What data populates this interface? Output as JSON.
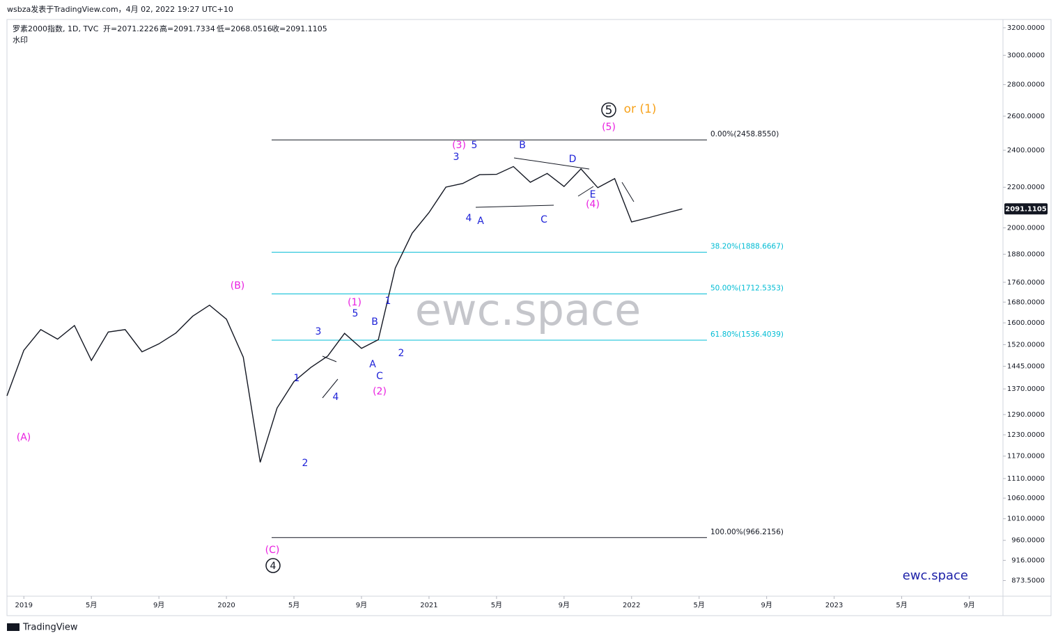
{
  "header": {
    "author": "wsbza发表于TradingView.com，4月 02, 2022 19:27 UTC+10",
    "symbol": "罗素2000指数, 1D, TVC",
    "open": "开=2071.2226",
    "high": "高=2091.7334",
    "low": "低=2068.0516",
    "close": "收=2091.1105",
    "watermark_label": "水印"
  },
  "chart_data": {
    "type": "line",
    "color": "#131722",
    "log_scale": true,
    "x": [
      "2018-12",
      "2019-01",
      "2019-02",
      "2019-03",
      "2019-04",
      "2019-05",
      "2019-06",
      "2019-07",
      "2019-08",
      "2019-09",
      "2019-10",
      "2019-11",
      "2019-12",
      "2020-01",
      "2020-02",
      "2020-03",
      "2020-04",
      "2020-05",
      "2020-06",
      "2020-07",
      "2020-08",
      "2020-09",
      "2020-10",
      "2020-11",
      "2020-12",
      "2021-01",
      "2021-02",
      "2021-03",
      "2021-04",
      "2021-05",
      "2021-06",
      "2021-07",
      "2021-08",
      "2021-09",
      "2021-10",
      "2021-11",
      "2021-12",
      "2022-01",
      "2022-02",
      "2022-03",
      "2022-04"
    ],
    "values": [
      1348,
      1500,
      1575,
      1540,
      1590,
      1465,
      1566,
      1575,
      1495,
      1523,
      1562,
      1625,
      1668,
      1614,
      1476,
      1153,
      1310,
      1394,
      1441,
      1480,
      1561,
      1507,
      1538,
      1820,
      1975,
      2073,
      2201,
      2220,
      2266,
      2268,
      2310,
      2226,
      2273,
      2204,
      2297,
      2198,
      2245,
      2028,
      2048,
      2070,
      2091
    ],
    "xlim": [
      "2018-12",
      "2023-11"
    ],
    "xticks": [
      {
        "value": "2019-01",
        "label": "2019"
      },
      {
        "value": "2019-05",
        "label": "5月"
      },
      {
        "value": "2019-09",
        "label": "9月"
      },
      {
        "value": "2020-01",
        "label": "2020"
      },
      {
        "value": "2020-05",
        "label": "5月"
      },
      {
        "value": "2020-09",
        "label": "9月"
      },
      {
        "value": "2021-01",
        "label": "2021"
      },
      {
        "value": "2021-05",
        "label": "5月"
      },
      {
        "value": "2021-09",
        "label": "9月"
      },
      {
        "value": "2022-01",
        "label": "2022"
      },
      {
        "value": "2022-05",
        "label": "5月"
      },
      {
        "value": "2022-09",
        "label": "9月"
      },
      {
        "value": "2023-01",
        "label": "2023"
      },
      {
        "value": "2023-05",
        "label": "5月"
      },
      {
        "value": "2023-09",
        "label": "9月"
      }
    ],
    "ylim": [
      842,
      3263
    ],
    "yticks": [
      {
        "value": 3200,
        "label": "3200.0000"
      },
      {
        "value": 3000,
        "label": "3000.0000"
      },
      {
        "value": 2800,
        "label": "2800.0000"
      },
      {
        "value": 2600,
        "label": "2600.0000"
      },
      {
        "value": 2400,
        "label": "2400.0000"
      },
      {
        "value": 2200,
        "label": "2200.0000"
      },
      {
        "value": 2000,
        "label": "2000.0000"
      },
      {
        "value": 1880,
        "label": "1880.0000"
      },
      {
        "value": 1760,
        "label": "1760.0000"
      },
      {
        "value": 1680,
        "label": "1680.0000"
      },
      {
        "value": 1600,
        "label": "1600.0000"
      },
      {
        "value": 1520,
        "label": "1520.0000"
      },
      {
        "value": 1445,
        "label": "1445.0000"
      },
      {
        "value": 1370,
        "label": "1370.0000"
      },
      {
        "value": 1290,
        "label": "1290.0000"
      },
      {
        "value": 1230,
        "label": "1230.0000"
      },
      {
        "value": 1170,
        "label": "1170.0000"
      },
      {
        "value": 1110,
        "label": "1110.0000"
      },
      {
        "value": 1060,
        "label": "1060.0000"
      },
      {
        "value": 1010,
        "label": "1010.0000"
      },
      {
        "value": 960,
        "label": "960.0000"
      },
      {
        "value": 916,
        "label": "916.0000"
      },
      {
        "value": 873.5,
        "label": "873.5000"
      }
    ],
    "last_price": {
      "value": 2091.1105,
      "label": "2091.1105"
    },
    "levels": [
      {
        "value": 2458.855,
        "label": "0.00%(2458.8550)",
        "color": "#131722"
      },
      {
        "value": 1888.6667,
        "label": "38.20%(1888.6667)",
        "color": "#00bcd4"
      },
      {
        "value": 1712.5353,
        "label": "50.00%(1712.5353)",
        "color": "#00bcd4"
      },
      {
        "value": 1536.4039,
        "label": "61.80%(1536.4039)",
        "color": "#00bcd4"
      },
      {
        "value": 966.2156,
        "label": "100.00%(966.2156)",
        "color": "#131722"
      }
    ],
    "annotations": [
      {
        "text": "(A)",
        "color": "#e91ee0"
      },
      {
        "text": "(B)",
        "color": "#e91ee0"
      },
      {
        "text": "(C)",
        "color": "#e91ee0"
      },
      {
        "text": "4",
        "color": "#131722",
        "circled": true
      },
      {
        "text": "1",
        "color": "#1e22d8"
      },
      {
        "text": "2",
        "color": "#1e22d8"
      },
      {
        "text": "3",
        "color": "#1e22d8"
      },
      {
        "text": "4",
        "color": "#1e22d8"
      },
      {
        "text": "5",
        "color": "#1e22d8"
      },
      {
        "text": "(1)",
        "color": "#e91ee0"
      },
      {
        "text": "A",
        "color": "#1e22d8"
      },
      {
        "text": "B",
        "color": "#1e22d8"
      },
      {
        "text": "C",
        "color": "#1e22d8"
      },
      {
        "text": "(2)",
        "color": "#e91ee0"
      },
      {
        "text": "1",
        "color": "#1e22d8"
      },
      {
        "text": "2",
        "color": "#1e22d8"
      },
      {
        "text": "3",
        "color": "#1e22d8"
      },
      {
        "text": "(3)",
        "color": "#e91ee0"
      },
      {
        "text": "5",
        "color": "#1e22d8"
      },
      {
        "text": "4",
        "color": "#1e22d8"
      },
      {
        "text": "A",
        "color": "#1e22d8"
      },
      {
        "text": "B",
        "color": "#1e22d8"
      },
      {
        "text": "C",
        "color": "#1e22d8"
      },
      {
        "text": "D",
        "color": "#1e22d8"
      },
      {
        "text": "E",
        "color": "#1e22d8"
      },
      {
        "text": "(4)",
        "color": "#e91ee0"
      },
      {
        "text": "(5)",
        "color": "#e91ee0"
      },
      {
        "text": "5",
        "color": "#131722",
        "circled": true
      },
      {
        "text": "or (1)",
        "color": "#f7a21b"
      }
    ],
    "watermark": "ewc.space",
    "brand": "ewc.space"
  },
  "footer": "TradingView"
}
